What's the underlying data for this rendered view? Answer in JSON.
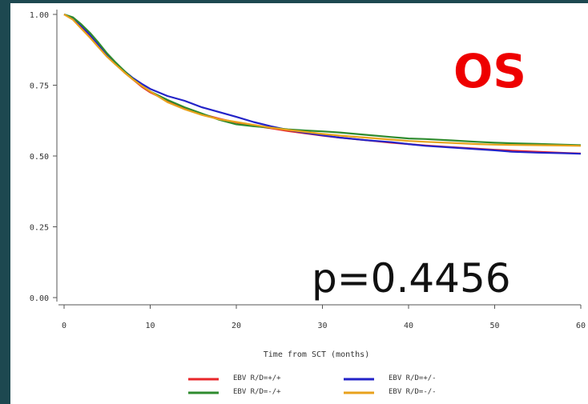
{
  "chart_data": {
    "type": "line",
    "title": "",
    "xlabel": "Time from SCT (months)",
    "ylabel": "",
    "xlim": [
      0,
      60
    ],
    "ylim": [
      0,
      1
    ],
    "xticks": [
      "0",
      "10",
      "20",
      "30",
      "40",
      "50",
      "60"
    ],
    "yticks": [
      "0.00",
      "0.25",
      "0.50",
      "0.75",
      "1.00"
    ],
    "annotations": {
      "panel_label": "OS",
      "p_value": "p=0.4456"
    },
    "legend_position": "bottom",
    "series": [
      {
        "name": "EBV R/D=+/+",
        "color": "#e8262a",
        "x": [
          0,
          1,
          2,
          3,
          4,
          5,
          6,
          7,
          8,
          9,
          10,
          12,
          14,
          16,
          18,
          20,
          22,
          24,
          26,
          28,
          30,
          32,
          35,
          38,
          40,
          42,
          45,
          48,
          50,
          52,
          55,
          58,
          60
        ],
        "y": [
          1.0,
          0.985,
          0.955,
          0.925,
          0.89,
          0.855,
          0.825,
          0.795,
          0.77,
          0.745,
          0.725,
          0.695,
          0.668,
          0.648,
          0.632,
          0.618,
          0.607,
          0.598,
          0.588,
          0.58,
          0.572,
          0.565,
          0.556,
          0.547,
          0.542,
          0.537,
          0.531,
          0.526,
          0.522,
          0.519,
          0.515,
          0.511,
          0.509
        ]
      },
      {
        "name": "EBV R/D=+/-",
        "color": "#2323c8",
        "x": [
          0,
          1,
          2,
          3,
          4,
          5,
          6,
          7,
          8,
          9,
          10,
          12,
          14,
          16,
          18,
          20,
          22,
          24,
          26,
          28,
          30,
          32,
          35,
          38,
          40,
          42,
          45,
          48,
          50,
          52,
          55,
          58,
          60
        ],
        "y": [
          1.0,
          0.988,
          0.96,
          0.928,
          0.893,
          0.858,
          0.828,
          0.8,
          0.775,
          0.755,
          0.737,
          0.712,
          0.695,
          0.672,
          0.655,
          0.638,
          0.62,
          0.605,
          0.592,
          0.582,
          0.573,
          0.565,
          0.556,
          0.549,
          0.542,
          0.536,
          0.53,
          0.524,
          0.52,
          0.515,
          0.512,
          0.51,
          0.508
        ]
      },
      {
        "name": "EBV R/D=-/+",
        "color": "#2e8b2e",
        "x": [
          0,
          1,
          2,
          3,
          4,
          5,
          6,
          7,
          8,
          9,
          10,
          12,
          14,
          16,
          18,
          20,
          22,
          24,
          26,
          28,
          30,
          32,
          35,
          38,
          40,
          42,
          45,
          48,
          50,
          52,
          55,
          58,
          60
        ],
        "y": [
          1.0,
          0.99,
          0.965,
          0.935,
          0.9,
          0.862,
          0.83,
          0.8,
          0.772,
          0.748,
          0.728,
          0.698,
          0.672,
          0.65,
          0.628,
          0.612,
          0.605,
          0.6,
          0.594,
          0.59,
          0.587,
          0.583,
          0.575,
          0.567,
          0.562,
          0.56,
          0.555,
          0.55,
          0.547,
          0.545,
          0.543,
          0.54,
          0.538
        ]
      },
      {
        "name": "EBV R/D=-/-",
        "color": "#e8a21c",
        "x": [
          0,
          1,
          2,
          3,
          4,
          5,
          6,
          7,
          8,
          9,
          10,
          12,
          14,
          16,
          18,
          20,
          22,
          24,
          26,
          28,
          30,
          32,
          35,
          38,
          40,
          42,
          45,
          48,
          50,
          52,
          55,
          58,
          60
        ],
        "y": [
          1.0,
          0.982,
          0.95,
          0.918,
          0.884,
          0.85,
          0.822,
          0.795,
          0.77,
          0.748,
          0.728,
          0.69,
          0.665,
          0.645,
          0.63,
          0.62,
          0.61,
          0.6,
          0.592,
          0.585,
          0.578,
          0.572,
          0.565,
          0.558,
          0.553,
          0.55,
          0.546,
          0.542,
          0.54,
          0.539,
          0.538,
          0.537,
          0.536
        ]
      }
    ]
  }
}
